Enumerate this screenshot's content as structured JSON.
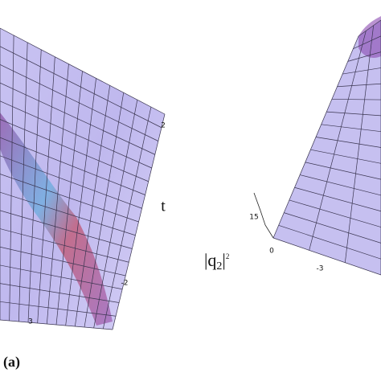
{
  "panel_a": {
    "label": "(a)",
    "axis_label": "t",
    "ticks": [
      "2",
      "-2",
      "3"
    ]
  },
  "panel_b": {
    "z_label": {
      "base": "|q",
      "sub": "2",
      "close": "|",
      "sup": "2"
    },
    "ticks": [
      "15",
      "0",
      "-3"
    ]
  }
}
